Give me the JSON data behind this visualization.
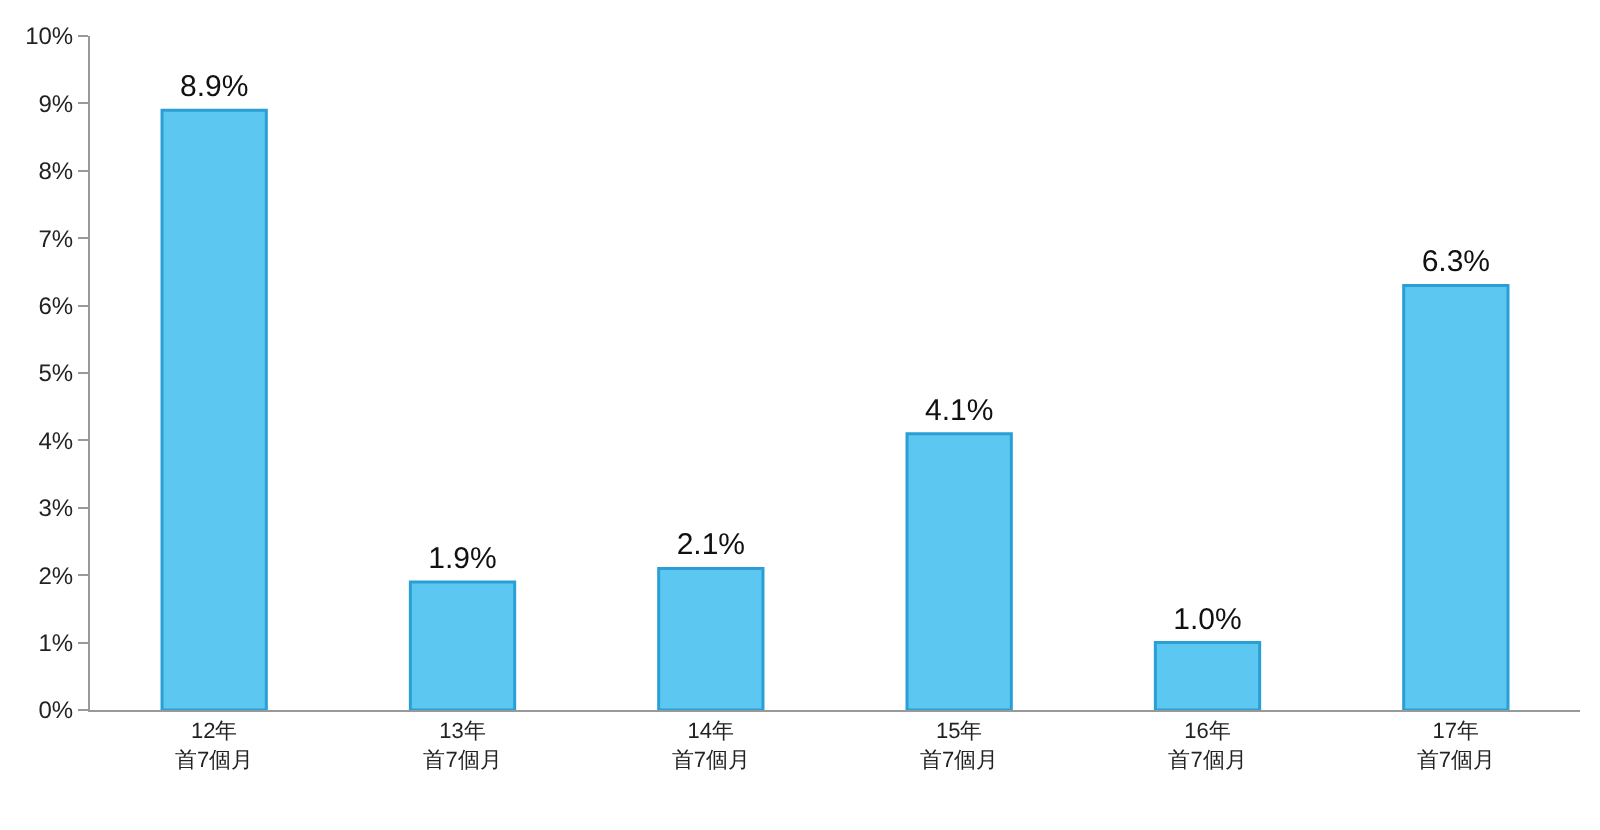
{
  "chart_data": {
    "type": "bar",
    "categories": [
      "12年首7個月",
      "13年首7個月",
      "14年首7個月",
      "15年首7個月",
      "16年首7個月",
      "17年首7個月"
    ],
    "values": [
      8.9,
      1.9,
      2.1,
      4.1,
      1.0,
      6.3
    ],
    "value_labels": [
      "8.9%",
      "1.9%",
      "2.1%",
      "4.1%",
      "1.0%",
      "6.3%"
    ],
    "color": "#5cc8f2",
    "ylim": [
      0,
      10
    ],
    "yticks": [
      {
        "value": 0,
        "label": "0%"
      },
      {
        "value": 1,
        "label": "1%"
      },
      {
        "value": 2,
        "label": "2%"
      },
      {
        "value": 3,
        "label": "3%"
      },
      {
        "value": 4,
        "label": "4%"
      },
      {
        "value": 5,
        "label": "5%"
      },
      {
        "value": 6,
        "label": "6%"
      },
      {
        "value": 7,
        "label": "7%"
      },
      {
        "value": 8,
        "label": "8%"
      },
      {
        "value": 9,
        "label": "9%"
      },
      {
        "value": 10,
        "label": "10%"
      }
    ],
    "grid": false,
    "legend": false
  }
}
